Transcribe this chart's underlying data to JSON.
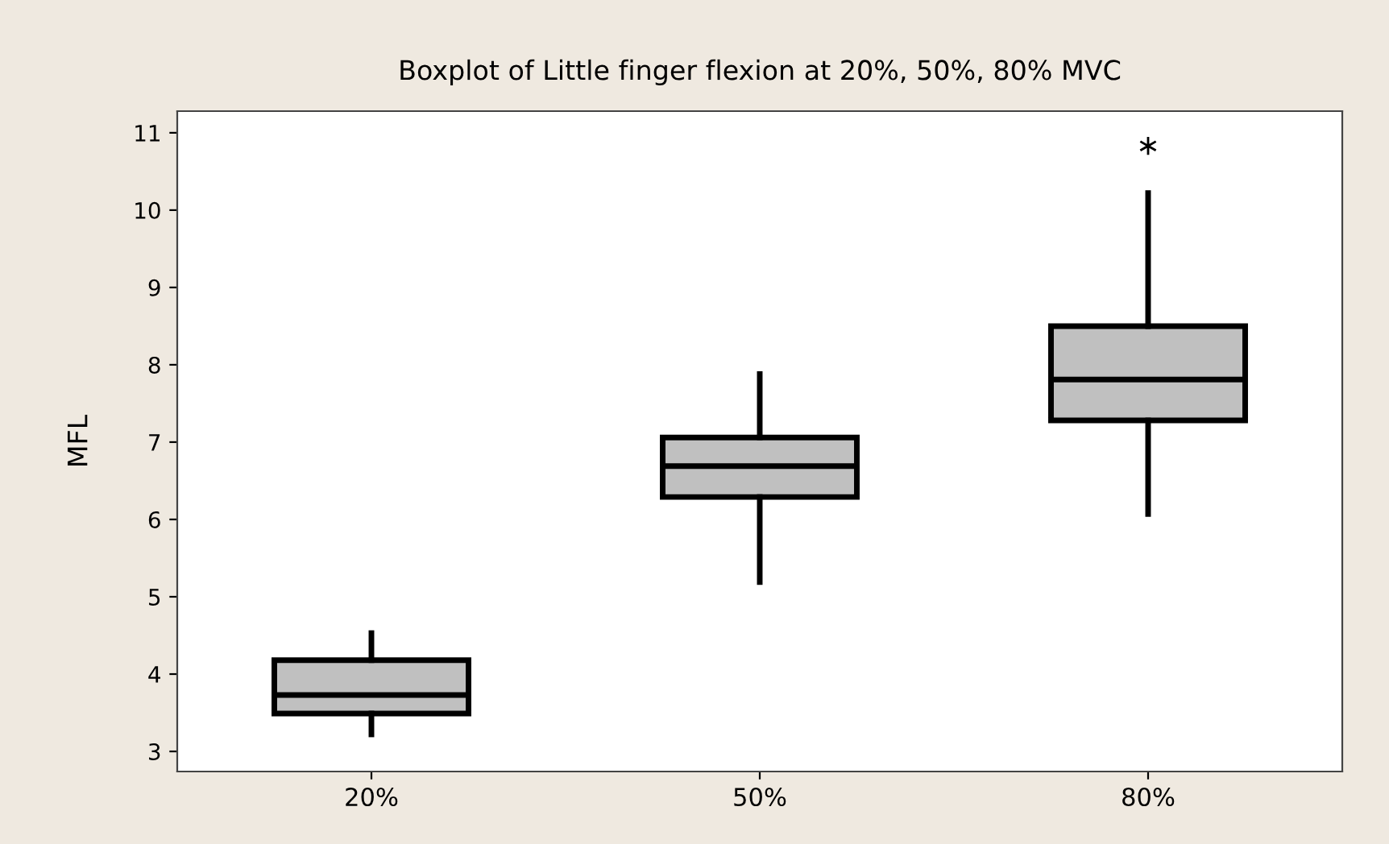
{
  "chart_data": {
    "type": "box",
    "title": "Boxplot of Little finger flexion at 20%, 50%, 80% MVC",
    "ylabel": "MFL",
    "categories": [
      "20%",
      "50%",
      "80%"
    ],
    "boxes": [
      {
        "low": 3.22,
        "q1": 3.49,
        "median": 3.73,
        "q3": 4.18,
        "high": 4.53
      },
      {
        "low": 5.19,
        "q1": 6.29,
        "median": 6.69,
        "q3": 7.06,
        "high": 7.88
      },
      {
        "low": 6.07,
        "q1": 7.28,
        "median": 7.81,
        "q3": 8.5,
        "high": 10.22,
        "outliers": [
          10.83
        ]
      }
    ],
    "color": "#c0c0c0",
    "ylim": [
      2.74,
      11.28
    ],
    "yticks": [
      3,
      4,
      5,
      6,
      7,
      8,
      9,
      10,
      11
    ],
    "grid": false
  }
}
